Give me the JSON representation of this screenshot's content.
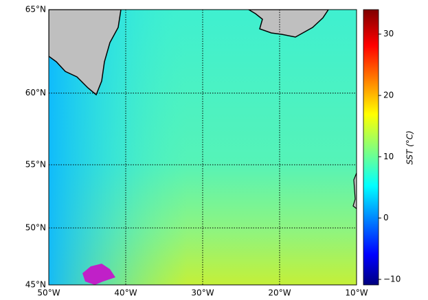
{
  "map": {
    "type": "map",
    "projection": "mercator",
    "xlim": [
      -50,
      -10
    ],
    "ylim": [
      45,
      65
    ],
    "xticks": [
      {
        "value": -50,
        "label": "50°W"
      },
      {
        "value": -40,
        "label": "40°W"
      },
      {
        "value": -30,
        "label": "30°W"
      },
      {
        "value": -20,
        "label": "20°W"
      },
      {
        "value": -10,
        "label": "10°W"
      }
    ],
    "yticks": [
      {
        "value": 45,
        "label": "45°N"
      },
      {
        "value": 50,
        "label": "50°N"
      },
      {
        "value": 55,
        "label": "55°N"
      },
      {
        "value": 60,
        "label": "60°N"
      },
      {
        "value": 65,
        "label": "65°N"
      }
    ],
    "grid": true,
    "colorbar": {
      "label": "SST (°C)",
      "lim": [
        -10.9,
        34
      ],
      "ticks": [
        {
          "value": -10,
          "label": "−10"
        },
        0,
        10,
        20,
        30
      ]
    }
  }
}
